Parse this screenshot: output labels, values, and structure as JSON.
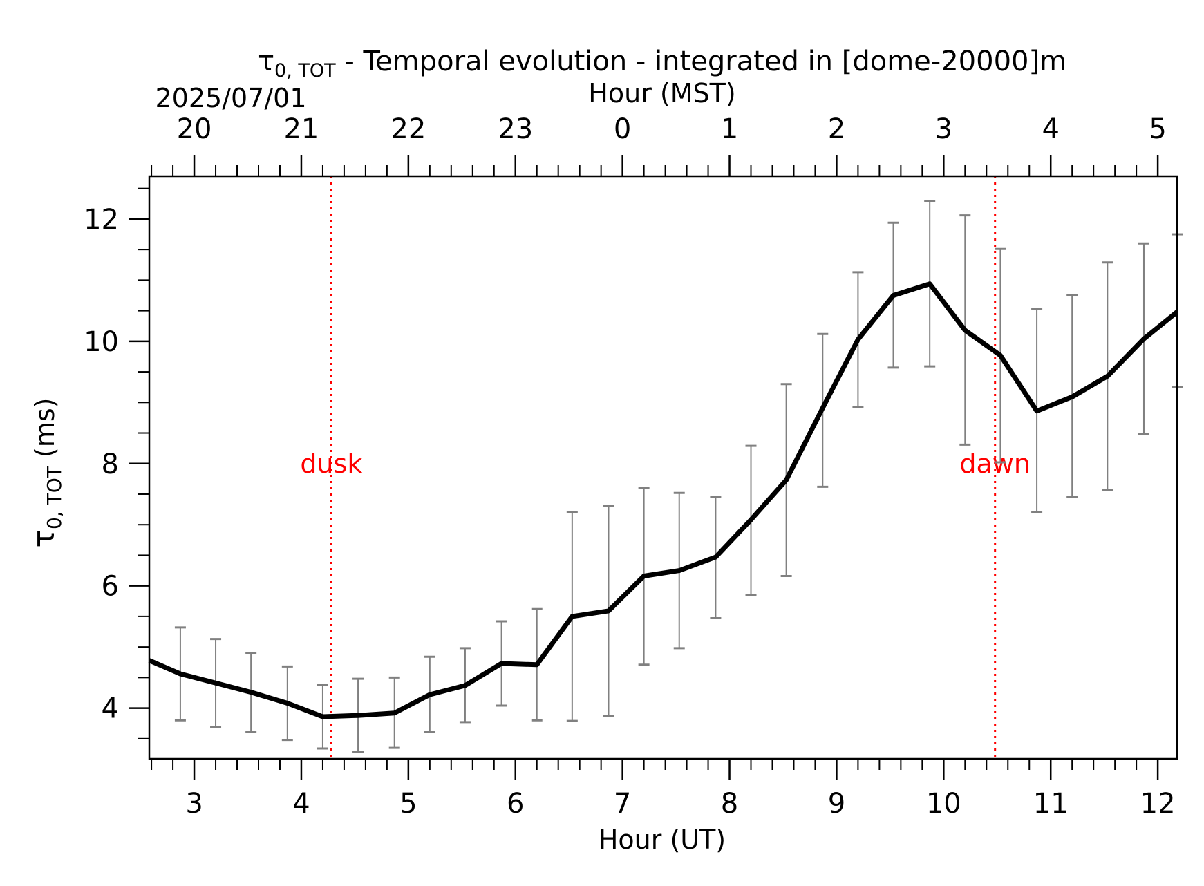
{
  "chart_data": {
    "type": "line",
    "title": {
      "symbol": "τ",
      "subscript": "0, TOT",
      "rest": " - Temporal evolution - integrated in [dome-20000]m"
    },
    "date_label": "2025/07/01",
    "xlabel_bottom": "Hour (UT)",
    "xlabel_top": "Hour (MST)",
    "ylabel": {
      "symbol": "τ",
      "subscript": "0, TOT",
      "unit": " (ms)"
    },
    "xlim": [
      2.58,
      12.18
    ],
    "ylim": [
      3.17,
      12.7
    ],
    "x_ticks": [
      3,
      4,
      5,
      6,
      7,
      8,
      9,
      10,
      11,
      12
    ],
    "x_tick_labels": [
      "3",
      "4",
      "5",
      "6",
      "7",
      "8",
      "9",
      "10",
      "11",
      "12"
    ],
    "x_top_ticks": [
      3,
      4,
      5,
      6,
      7,
      8,
      9,
      10,
      11,
      12
    ],
    "x_top_tick_labels": [
      "20",
      "21",
      "22",
      "23",
      "0",
      "1",
      "2",
      "3",
      "4",
      "5"
    ],
    "y_ticks": [
      4,
      6,
      8,
      10,
      12
    ],
    "y_tick_labels": [
      "4",
      "6",
      "8",
      "10",
      "12"
    ],
    "colors": {
      "line": "#000000",
      "errorbar": "#808080",
      "annotation": "#ff0000"
    },
    "series": [
      {
        "x": [
          2.58,
          2.87,
          3.2,
          3.53,
          3.87,
          4.2,
          4.53,
          4.87,
          5.2,
          5.53,
          5.87,
          6.2,
          6.53,
          6.87,
          7.2,
          7.53,
          7.87,
          8.2,
          8.53,
          8.87,
          9.2,
          9.53,
          9.87,
          10.2,
          10.53,
          10.87,
          11.2,
          11.53,
          11.87,
          12.18
        ],
        "y": [
          4.78,
          4.56,
          4.41,
          4.26,
          4.08,
          3.86,
          3.88,
          3.92,
          4.22,
          4.37,
          4.73,
          4.71,
          5.5,
          5.59,
          6.16,
          6.25,
          6.47,
          7.08,
          7.73,
          8.91,
          10.03,
          10.75,
          10.94,
          10.18,
          9.77,
          8.86,
          9.09,
          9.43,
          10.04,
          10.48
        ]
      }
    ],
    "error_bars": {
      "x": [
        2.87,
        3.2,
        3.53,
        3.87,
        4.2,
        4.53,
        4.87,
        5.2,
        5.53,
        5.87,
        6.2,
        6.53,
        6.87,
        7.2,
        7.53,
        7.87,
        8.2,
        8.53,
        8.87,
        9.2,
        9.53,
        9.87,
        10.2,
        10.53,
        10.87,
        11.2,
        11.53,
        11.87,
        12.18
      ],
      "lower": [
        3.8,
        3.69,
        3.61,
        3.48,
        3.34,
        3.28,
        3.35,
        3.61,
        3.77,
        4.04,
        3.8,
        3.79,
        3.87,
        4.71,
        4.98,
        5.47,
        5.85,
        6.16,
        7.62,
        8.93,
        9.57,
        9.59,
        8.31,
        8.02,
        7.2,
        7.45,
        7.57,
        8.48,
        9.25
      ],
      "upper": [
        5.32,
        5.13,
        4.9,
        4.68,
        4.38,
        4.48,
        4.5,
        4.84,
        4.98,
        5.42,
        5.62,
        7.2,
        7.31,
        7.6,
        7.52,
        7.46,
        8.29,
        9.3,
        10.12,
        11.13,
        11.94,
        12.29,
        12.06,
        11.51,
        10.53,
        10.76,
        11.29,
        11.6,
        11.75
      ]
    },
    "annotations": [
      {
        "label": "dusk",
        "x": 4.28,
        "text_y": 7.85
      },
      {
        "label": "dawn",
        "x": 10.48,
        "text_y": 7.85
      }
    ]
  }
}
